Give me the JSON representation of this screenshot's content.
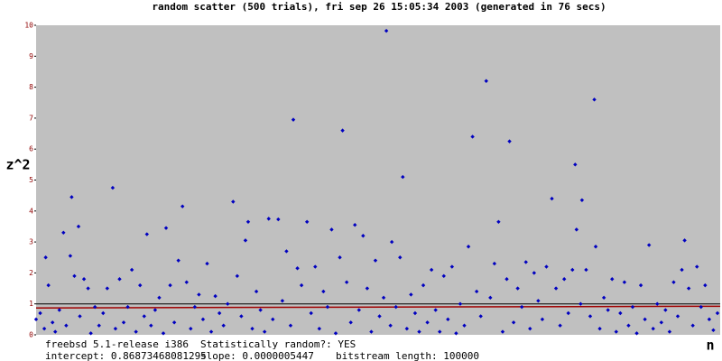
{
  "chart_data": {
    "type": "scatter",
    "title": "random scatter (500 trials), fri sep 26 15:05:34 2003 (generated in 76 secs)",
    "y_label": "z^2",
    "x_label": "n",
    "notes": [
      "freebsd 5.1-release i386",
      "Statistically random?: YES",
      "intercept: 0.86873468081295",
      "slope: 0.0000005447",
      "bitstream length: 100000"
    ],
    "intercept": 0.86873468081295,
    "slope": 5.447e-07,
    "bitstream_length": 100000,
    "hline": 1,
    "xlim": [
      0,
      500
    ],
    "ylim": [
      0,
      10
    ],
    "yticks": [
      0,
      1,
      2,
      3,
      4,
      5,
      6,
      7,
      8,
      9,
      10
    ],
    "background": "#c0c0c0",
    "series": [
      {
        "color": "#0000c0",
        "x": [
          0,
          3,
          6,
          7,
          9,
          12,
          14,
          17,
          20,
          22,
          25,
          26,
          28,
          31,
          32,
          35,
          38,
          40,
          43,
          46,
          49,
          52,
          56,
          58,
          61,
          64,
          67,
          70,
          73,
          76,
          79,
          81,
          84,
          87,
          90,
          93,
          95,
          98,
          101,
          104,
          107,
          110,
          113,
          116,
          119,
          122,
          125,
          128,
          131,
          134,
          137,
          140,
          144,
          147,
          150,
          153,
          155,
          158,
          161,
          164,
          167,
          170,
          173,
          177,
          180,
          183,
          186,
          188,
          191,
          194,
          198,
          201,
          204,
          207,
          210,
          213,
          216,
          219,
          222,
          224,
          227,
          230,
          233,
          236,
          239,
          242,
          245,
          248,
          251,
          254,
          256,
          259,
          260,
          263,
          266,
          268,
          271,
          274,
          277,
          280,
          283,
          286,
          289,
          292,
          295,
          298,
          301,
          304,
          307,
          310,
          313,
          316,
          319,
          322,
          325,
          329,
          332,
          335,
          338,
          341,
          344,
          346,
          349,
          352,
          355,
          358,
          361,
          364,
          367,
          370,
          373,
          377,
          380,
          383,
          386,
          389,
          392,
          394,
          395,
          398,
          399,
          402,
          405,
          408,
          409,
          412,
          415,
          418,
          421,
          424,
          427,
          430,
          433,
          436,
          439,
          442,
          445,
          448,
          451,
          454,
          457,
          460,
          463,
          466,
          469,
          472,
          474,
          477,
          480,
          483,
          486,
          489,
          492,
          495,
          498
        ],
        "values": [
          0.5,
          0.7,
          0.2,
          2.5,
          1.6,
          0.4,
          0.1,
          0.8,
          3.3,
          0.3,
          2.55,
          4.45,
          1.9,
          3.5,
          0.6,
          1.8,
          1.5,
          0.05,
          0.9,
          0.3,
          0.7,
          1.5,
          4.75,
          0.2,
          1.8,
          0.4,
          0.9,
          2.1,
          0.1,
          1.6,
          0.6,
          3.25,
          0.3,
          0.8,
          1.2,
          0.05,
          3.45,
          1.6,
          0.4,
          2.4,
          4.15,
          1.7,
          0.2,
          0.9,
          1.3,
          0.5,
          2.3,
          0.1,
          1.25,
          0.7,
          0.3,
          1.0,
          4.3,
          1.9,
          0.6,
          3.05,
          3.65,
          0.2,
          1.4,
          0.8,
          0.1,
          3.75,
          0.5,
          3.73,
          1.1,
          2.7,
          0.3,
          6.95,
          2.15,
          1.6,
          3.65,
          0.7,
          2.2,
          0.2,
          1.4,
          0.9,
          3.4,
          0.05,
          2.5,
          6.6,
          1.7,
          0.4,
          3.55,
          0.8,
          3.2,
          1.5,
          0.1,
          2.4,
          0.6,
          1.2,
          9.82,
          0.3,
          3.0,
          0.9,
          2.5,
          5.1,
          0.2,
          1.3,
          0.7,
          0.1,
          1.6,
          0.4,
          2.1,
          0.8,
          0.1,
          1.9,
          0.5,
          2.2,
          0.05,
          1.0,
          0.3,
          2.85,
          6.4,
          1.4,
          0.6,
          8.2,
          1.2,
          2.3,
          3.65,
          0.1,
          1.8,
          6.25,
          0.4,
          1.5,
          0.9,
          2.35,
          0.2,
          2.0,
          1.1,
          0.5,
          2.2,
          4.4,
          1.5,
          0.3,
          1.8,
          0.7,
          2.1,
          5.5,
          3.4,
          1.0,
          4.35,
          2.1,
          0.6,
          7.6,
          2.85,
          0.2,
          1.2,
          0.8,
          1.8,
          0.1,
          0.7,
          1.7,
          0.3,
          0.9,
          0.05,
          1.6,
          0.5,
          2.9,
          0.2,
          1.0,
          0.4,
          0.8,
          0.1,
          1.7,
          0.6,
          2.1,
          3.05,
          1.5,
          0.3,
          2.2,
          0.9,
          1.6,
          0.5,
          0.15,
          0.7
        ]
      }
    ]
  }
}
